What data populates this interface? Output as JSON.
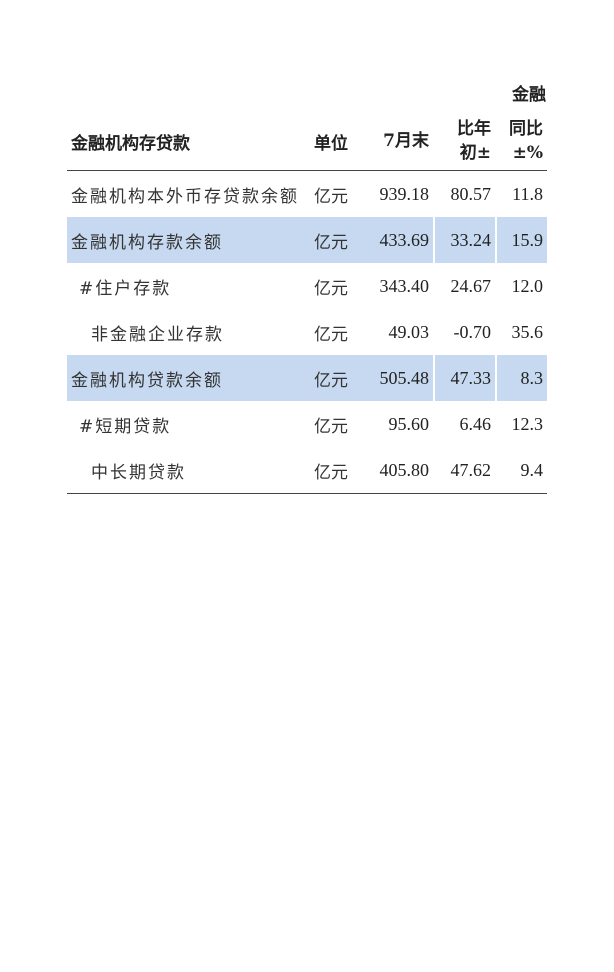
{
  "caption": "金融",
  "headers": {
    "name": "金融机构存贷款",
    "unit": "单位",
    "jul": "7月末",
    "ytd_1": "比年",
    "ytd_2": "初±",
    "yoy_1": "同比",
    "yoy_2": "±%"
  },
  "highlight_color": "#c6d9f0",
  "rows": [
    {
      "name": "金融机构本外币存贷款余额",
      "unit": "亿元",
      "jul": "939.18",
      "ytd": "80.57",
      "yoy": "11.8",
      "indent": 0,
      "highlight": false
    },
    {
      "name": "金融机构存款余额",
      "unit": "亿元",
      "jul": "433.69",
      "ytd": "33.24",
      "yoy": "15.9",
      "indent": 0,
      "highlight": true
    },
    {
      "name": "#住户存款",
      "unit": "亿元",
      "jul": "343.40",
      "ytd": "24.67",
      "yoy": "12.0",
      "indent": 1,
      "highlight": false
    },
    {
      "name": "非金融企业存款",
      "unit": "亿元",
      "jul": "49.03",
      "ytd": "-0.70",
      "yoy": "35.6",
      "indent": 2,
      "highlight": false
    },
    {
      "name": "金融机构贷款余额",
      "unit": "亿元",
      "jul": "505.48",
      "ytd": "47.33",
      "yoy": "8.3",
      "indent": 0,
      "highlight": true
    },
    {
      "name": "#短期贷款",
      "unit": "亿元",
      "jul": "95.60",
      "ytd": "6.46",
      "yoy": "12.3",
      "indent": 1,
      "highlight": false
    },
    {
      "name": "中长期贷款",
      "unit": "亿元",
      "jul": "405.80",
      "ytd": "47.62",
      "yoy": "9.4",
      "indent": 2,
      "highlight": false
    }
  ]
}
